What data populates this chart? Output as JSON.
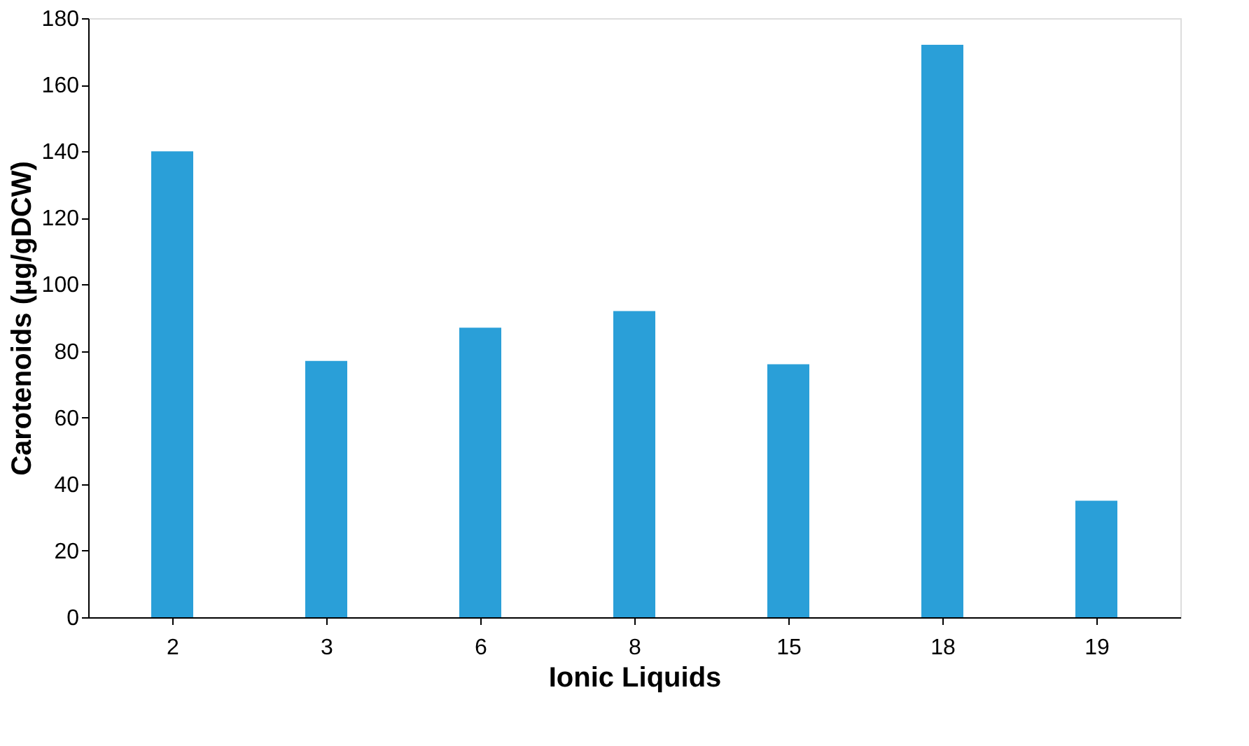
{
  "chart_data": {
    "type": "bar",
    "xlabel": "Ionic Liquids",
    "ylabel": "Carotenoids (µg/gDCW)",
    "categories": [
      "2",
      "3",
      "6",
      "8",
      "15",
      "18",
      "19"
    ],
    "values": [
      140,
      77,
      87,
      92,
      76,
      172,
      35
    ],
    "color": "#2a9fd8",
    "ylim": [
      0,
      180
    ],
    "yticks": [
      0,
      20,
      40,
      60,
      80,
      100,
      120,
      140,
      160,
      180
    ],
    "grid": false
  }
}
